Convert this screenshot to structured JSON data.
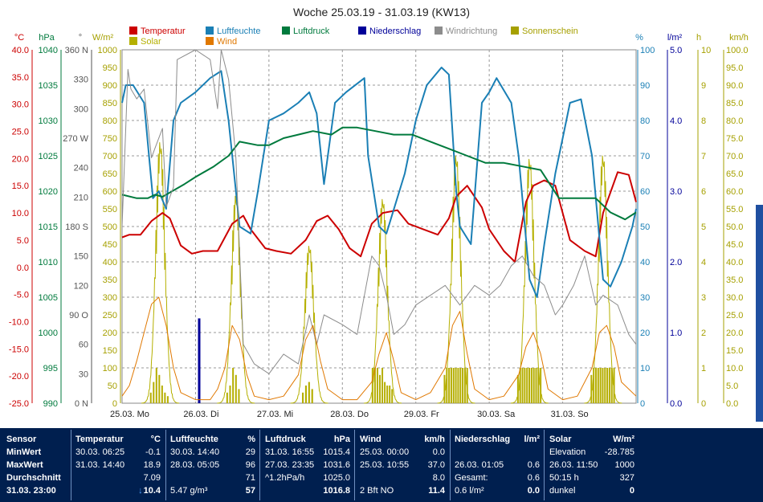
{
  "chart_data": {
    "type": "line",
    "title": "Woche 25.03.19 - 31.03.19 (KW13)",
    "days": [
      "25.03.  Mo",
      "26.03.  Di",
      "27.03.  Mi",
      "28.03.  Do",
      "29.03.  Fr",
      "30.03.  Sa",
      "31.03.  So"
    ],
    "legend": [
      {
        "name": "Temperatur",
        "color": "#cc0000"
      },
      {
        "name": "Luftfeuchte",
        "color": "#1a7fb5"
      },
      {
        "name": "Luftdruck",
        "color": "#007a3d"
      },
      {
        "name": "Niederschlag",
        "color": "#000099"
      },
      {
        "name": "Windrichtung",
        "color": "#8c8c8c"
      },
      {
        "name": "Sonnenschein",
        "color": "#a6a000"
      },
      {
        "name": "Solar",
        "color": "#b5b000"
      },
      {
        "name": "Wind",
        "color": "#e07800"
      }
    ],
    "axes": {
      "temp": {
        "unit": "°C",
        "color": "#cc0000",
        "ticks": [
          "40.0",
          "35.0",
          "30.0",
          "25.0",
          "20.0",
          "15.0",
          "10.0",
          "5.0",
          "0.0",
          "-5.0",
          "-10.0",
          "-15.0",
          "-20.0",
          "-25.0"
        ],
        "range": [
          -25,
          40
        ]
      },
      "pressure": {
        "unit": "hPa",
        "color": "#007a3d",
        "ticks": [
          "1040",
          "1035",
          "1030",
          "1025",
          "1020",
          "1015",
          "1010",
          "1005",
          "1000",
          "995",
          "990"
        ],
        "range": [
          990,
          1040
        ]
      },
      "winddir": {
        "unit": "°",
        "color": "#555555",
        "ticks": [
          "360 N",
          "330",
          "300",
          "270 W",
          "240",
          "210",
          "180 S",
          "150",
          "120",
          "90 O",
          "60",
          "30",
          "0 N"
        ],
        "range": [
          0,
          360
        ]
      },
      "solar": {
        "unit": "W/m²",
        "color": "#a6a000",
        "ticks": [
          "1000",
          "950",
          "900",
          "850",
          "800",
          "750",
          "700",
          "650",
          "600",
          "550",
          "500",
          "450",
          "400",
          "350",
          "300",
          "250",
          "200",
          "150",
          "100",
          "50",
          "0"
        ],
        "range": [
          0,
          1000
        ]
      },
      "humidity": {
        "unit": "%",
        "color": "#1a7fb5",
        "ticks": [
          "100",
          "90",
          "80",
          "70",
          "60",
          "50",
          "40",
          "30",
          "20",
          "10",
          "0"
        ],
        "range": [
          0,
          100
        ]
      },
      "rain": {
        "unit": "l/m²",
        "color": "#000099",
        "ticks": [
          "5.0",
          "4.0",
          "3.0",
          "2.0",
          "1.0",
          "0.0"
        ],
        "range": [
          0,
          5
        ]
      },
      "sunshine": {
        "unit": "h",
        "color": "#a6a000",
        "ticks": [
          "10",
          "9",
          "8",
          "7",
          "6",
          "5",
          "4",
          "3",
          "2",
          "1",
          "0"
        ],
        "range": [
          0,
          10
        ]
      },
      "wind": {
        "unit": "km/h",
        "color": "#a6a000",
        "ticks": [
          "100.0",
          "95.0",
          "90.0",
          "85.0",
          "80.0",
          "75.0",
          "70.0",
          "65.0",
          "60.0",
          "55.0",
          "50.0",
          "45.0",
          "40.0",
          "35.0",
          "30.0",
          "25.0",
          "20.0",
          "15.0",
          "10.0",
          "5.0",
          "0.0"
        ],
        "range": [
          0,
          100
        ]
      }
    },
    "grid": true,
    "x_range_days": [
      0,
      7
    ],
    "series": [
      {
        "name": "Temperatur",
        "axis": "temp",
        "color": "#cc0000",
        "x": [
          0,
          0.1,
          0.25,
          0.4,
          0.55,
          0.65,
          0.8,
          0.95,
          1.1,
          1.3,
          1.5,
          1.65,
          1.75,
          1.95,
          2.1,
          2.3,
          2.5,
          2.65,
          2.8,
          2.95,
          3.1,
          3.25,
          3.4,
          3.55,
          3.75,
          3.9,
          4.1,
          4.3,
          4.45,
          4.55,
          4.7,
          4.9,
          5.0,
          5.2,
          5.35,
          5.5,
          5.6,
          5.75,
          5.9,
          6.1,
          6.3,
          6.45,
          6.55,
          6.75,
          6.9,
          7.0
        ],
        "y": [
          5.5,
          6,
          6,
          8.5,
          10,
          9,
          4,
          2.5,
          3,
          3,
          8,
          9.5,
          7,
          3.5,
          3,
          2.5,
          5,
          8.5,
          9.5,
          7,
          3.5,
          2,
          8,
          10,
          10.5,
          8,
          7,
          6,
          9,
          13,
          15,
          11,
          7,
          3,
          1,
          12,
          15,
          16,
          15,
          5,
          3,
          2,
          10,
          17.5,
          17,
          12
        ]
      },
      {
        "name": "Luftfeuchte",
        "axis": "humidity",
        "color": "#1a7fb5",
        "x": [
          0,
          0.05,
          0.15,
          0.3,
          0.42,
          0.5,
          0.6,
          0.7,
          0.8,
          1.0,
          1.2,
          1.35,
          1.45,
          1.6,
          1.75,
          1.85,
          2.0,
          2.2,
          2.4,
          2.55,
          2.65,
          2.75,
          2.9,
          3.05,
          3.3,
          3.35,
          3.5,
          3.6,
          3.85,
          4.0,
          4.15,
          4.35,
          4.45,
          4.55,
          4.6,
          4.75,
          4.9,
          5.0,
          5.1,
          5.3,
          5.4,
          5.55,
          5.65,
          5.75,
          5.9,
          6.0,
          6.1,
          6.25,
          6.4,
          6.55,
          6.65,
          6.8,
          6.95,
          7.0
        ],
        "y": [
          85,
          90,
          90,
          85,
          58,
          60,
          55,
          80,
          85,
          88,
          92,
          94,
          80,
          50,
          48,
          60,
          80,
          82,
          85,
          88,
          82,
          62,
          85,
          88,
          92,
          70,
          50,
          48,
          65,
          80,
          90,
          95,
          93,
          60,
          50,
          45,
          85,
          88,
          92,
          85,
          70,
          35,
          30,
          45,
          65,
          75,
          85,
          86,
          70,
          35,
          33,
          40,
          50,
          55
        ]
      },
      {
        "name": "Luftdruck",
        "axis": "pressure",
        "color": "#007a3d",
        "x": [
          0,
          0.2,
          0.35,
          0.45,
          0.55,
          0.65,
          0.85,
          1.0,
          1.25,
          1.45,
          1.6,
          1.85,
          2.0,
          2.2,
          2.4,
          2.6,
          2.85,
          3.0,
          3.2,
          3.45,
          3.7,
          3.95,
          4.2,
          4.45,
          4.7,
          4.95,
          5.2,
          5.45,
          5.7,
          5.95,
          6.2,
          6.45,
          6.65,
          6.85,
          7.0
        ],
        "y": [
          1019.5,
          1019,
          1019,
          1019.5,
          1019.2,
          1019.8,
          1021,
          1022,
          1023.5,
          1025,
          1027,
          1026.5,
          1026.5,
          1027.5,
          1028,
          1028.5,
          1028,
          1029,
          1029,
          1028.5,
          1028,
          1028,
          1027,
          1026,
          1025,
          1024,
          1024,
          1023.5,
          1023,
          1019,
          1019,
          1019,
          1017,
          1016,
          1017
        ]
      },
      {
        "name": "Windrichtung",
        "axis": "winddir",
        "color": "#8c8c8c",
        "x": [
          0,
          0.08,
          0.12,
          0.2,
          0.3,
          0.4,
          0.45,
          0.55,
          0.6,
          0.7,
          0.75,
          1.0,
          1.2,
          1.3,
          1.35,
          1.45,
          1.55,
          1.65,
          1.8,
          2.0,
          2.2,
          2.4,
          2.55,
          2.65,
          2.75,
          3.0,
          3.2,
          3.4,
          3.5,
          3.6,
          3.7,
          3.85,
          4.0,
          4.2,
          4.4,
          4.6,
          4.8,
          5.0,
          5.15,
          5.3,
          5.45,
          5.6,
          5.75,
          5.9,
          6.0,
          6.15,
          6.3,
          6.45,
          6.55,
          6.75,
          6.9,
          7.0
        ],
        "y": [
          180,
          340,
          320,
          310,
          320,
          250,
          260,
          280,
          200,
          220,
          350,
          360,
          350,
          300,
          360,
          330,
          250,
          60,
          40,
          30,
          50,
          40,
          90,
          60,
          90,
          80,
          70,
          150,
          140,
          110,
          70,
          80,
          100,
          110,
          120,
          100,
          120,
          110,
          120,
          140,
          150,
          130,
          120,
          90,
          100,
          120,
          150,
          100,
          110,
          100,
          70,
          60
        ]
      },
      {
        "name": "Wind",
        "axis": "wind",
        "color": "#e07800",
        "x": [
          0,
          0.1,
          0.2,
          0.3,
          0.4,
          0.5,
          0.6,
          0.7,
          0.8,
          1.0,
          1.2,
          1.3,
          1.4,
          1.5,
          1.6,
          1.7,
          1.8,
          2.0,
          2.2,
          2.4,
          2.5,
          2.6,
          2.7,
          2.8,
          3.0,
          3.2,
          3.4,
          3.5,
          3.6,
          3.7,
          3.8,
          4.0,
          4.2,
          4.4,
          4.5,
          4.6,
          4.7,
          4.8,
          5.0,
          5.2,
          5.4,
          5.5,
          5.6,
          5.7,
          5.8,
          6.0,
          6.2,
          6.4,
          6.5,
          6.6,
          6.7,
          6.8,
          7.0
        ],
        "y": [
          2,
          5,
          12,
          20,
          28,
          30,
          22,
          10,
          3,
          1,
          1,
          4,
          10,
          22,
          18,
          8,
          2,
          1,
          2,
          8,
          18,
          22,
          12,
          4,
          1,
          1,
          6,
          14,
          20,
          12,
          3,
          1,
          3,
          10,
          22,
          26,
          14,
          4,
          1,
          2,
          8,
          16,
          20,
          14,
          4,
          1,
          2,
          10,
          20,
          22,
          16,
          6,
          2
        ]
      }
    ],
    "solar_peaks": [
      {
        "day": 0,
        "peak": 780,
        "center": 0.52,
        "width": 0.16
      },
      {
        "day": 1,
        "peak": 620,
        "center": 1.55,
        "width": 0.16
      },
      {
        "day": 2,
        "peak": 470,
        "center": 2.55,
        "width": 0.16
      },
      {
        "day": 3,
        "peak": 610,
        "center": 3.55,
        "width": 0.16
      },
      {
        "day": 4,
        "peak": 740,
        "center": 4.55,
        "width": 0.16
      },
      {
        "day": 5,
        "peak": 730,
        "center": 5.55,
        "width": 0.16
      },
      {
        "day": 6,
        "peak": 740,
        "center": 6.55,
        "width": 0.16
      }
    ],
    "sunshine_blocks": [
      {
        "day": 0,
        "from": 0.38,
        "to": 0.65,
        "h": [
          0.3,
          0.6,
          1,
          0.8,
          0.5,
          0.3,
          0.2
        ]
      },
      {
        "day": 1,
        "from": 1.42,
        "to": 1.62,
        "h": [
          0.3,
          0.5,
          1,
          0.8,
          0.4
        ]
      },
      {
        "day": 2,
        "from": 2.45,
        "to": 2.62,
        "h": [
          0.3,
          0.5,
          0.6,
          0.4
        ]
      },
      {
        "day": 3,
        "from": 3.4,
        "to": 3.7,
        "h": [
          1,
          1,
          1,
          0.8,
          1,
          0.6,
          0.5,
          0.5,
          0.4
        ]
      },
      {
        "day": 4,
        "from": 4.38,
        "to": 4.72,
        "h": [
          0.8,
          1,
          1,
          1,
          1,
          1,
          1,
          1,
          1,
          1,
          1
        ]
      },
      {
        "day": 5,
        "from": 5.38,
        "to": 5.72,
        "h": [
          0.8,
          1,
          1,
          1,
          1,
          1,
          1,
          1,
          1,
          1,
          1
        ]
      },
      {
        "day": 6,
        "from": 6.38,
        "to": 6.72,
        "h": [
          0.8,
          1,
          1,
          1,
          1,
          1,
          1,
          1,
          1,
          1,
          1
        ]
      }
    ],
    "rain_bars": [
      {
        "x": 1.05,
        "value": 1.2
      }
    ]
  },
  "table": {
    "columns": [
      {
        "header": "Sensor",
        "unit": "",
        "rows": [
          "MinWert",
          "MaxWert",
          "Durchschnitt",
          "31.03.  23:00"
        ]
      },
      {
        "header": "Temperatur",
        "unit": "°C",
        "rows": [
          [
            "30.03.  06:25",
            "-0.1"
          ],
          [
            "31.03.  14:40",
            "18.9"
          ],
          [
            "",
            "7.09"
          ],
          [
            "",
            "10.4"
          ]
        ]
      },
      {
        "header": "Luftfeuchte",
        "unit": "%",
        "rows": [
          [
            "30.03.  14:40",
            "29"
          ],
          [
            "28.03.  05:05",
            "96"
          ],
          [
            "",
            "71"
          ],
          [
            "5.47 g/m³",
            "57"
          ]
        ]
      },
      {
        "header": "Luftdruck",
        "unit": "hPa",
        "rows": [
          [
            "31.03.  16:55",
            "1015.4"
          ],
          [
            "27.03.  23:35",
            "1031.6"
          ],
          [
            "^1.2hPa/h",
            "1025.0"
          ],
          [
            "",
            "1016.8"
          ]
        ]
      },
      {
        "header": "Wind",
        "unit": "km/h",
        "rows": [
          [
            "25.03.  00:00",
            "0.0"
          ],
          [
            "25.03.  10:55",
            "37.0"
          ],
          [
            "",
            "8.0"
          ],
          [
            "2 Bft NO",
            "11.4"
          ]
        ]
      },
      {
        "header": "Niederschlag",
        "unit": "l/m²",
        "rows": [
          [
            "",
            ""
          ],
          [
            "26.03.  01:05",
            "0.6"
          ],
          [
            "Gesamt:",
            "0.6"
          ],
          [
            "0.6 l/m²",
            "0.0"
          ]
        ]
      },
      {
        "header": "Solar",
        "unit": "W/m²",
        "rows": [
          [
            "Elevation",
            "-28.785"
          ],
          [
            "26.03.  11:50",
            "1000"
          ],
          [
            "50:15 h",
            "327"
          ],
          [
            "dunkel",
            "0"
          ]
        ]
      }
    ],
    "trend_arrow": "↓"
  }
}
